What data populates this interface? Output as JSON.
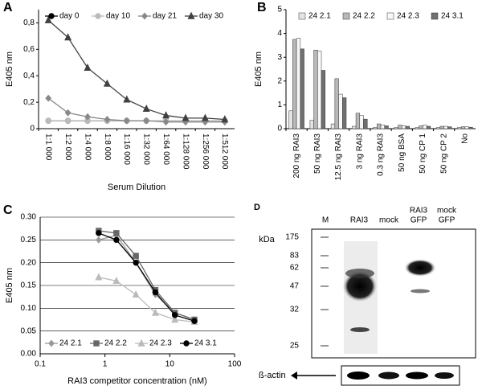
{
  "chart_data": [
    {
      "type": "line",
      "panel": "A",
      "ylabel": "E405 nm",
      "xlabel": "Serum Dilution",
      "categories": [
        "1:1 000",
        "1:2 000",
        "1:4 000",
        "1:8 000",
        "1:16 000",
        "1:32 000",
        "1:64 000",
        "1:128 000",
        "1:256 000",
        "1:512 000"
      ],
      "series": [
        {
          "name": "day 0",
          "color": "#000000",
          "marker": "circle",
          "values": [
            0.06,
            0.06,
            0.06,
            0.06,
            0.06,
            0.06,
            0.06,
            0.06,
            0.06,
            0.06
          ]
        },
        {
          "name": "day 10",
          "color": "#bbbbbb",
          "marker": "circle",
          "values": [
            0.06,
            0.06,
            0.06,
            0.06,
            0.06,
            0.06,
            0.06,
            0.06,
            0.06,
            0.06
          ]
        },
        {
          "name": "day 21",
          "color": "#888888",
          "marker": "diamond",
          "values": [
            0.23,
            0.12,
            0.09,
            0.07,
            0.06,
            0.06,
            0.05,
            0.05,
            0.05,
            0.05
          ]
        },
        {
          "name": "day 30",
          "color": "#404040",
          "marker": "triangle",
          "values": [
            0.82,
            0.69,
            0.46,
            0.34,
            0.22,
            0.15,
            0.1,
            0.08,
            0.08,
            0.07
          ]
        }
      ],
      "ylim": [
        0,
        0.9
      ],
      "yticks": [
        0,
        {
          "value": 0.2,
          "label": "0,2"
        },
        {
          "value": 0.4,
          "label": "0,4"
        },
        {
          "value": 0.6,
          "label": "0,6"
        },
        {
          "value": 0.8,
          "label": "0,8"
        }
      ],
      "grid": false,
      "legend": "top"
    },
    {
      "type": "bar",
      "panel": "B",
      "ylabel": "E405 nm",
      "categories": [
        "200 ng RAI3",
        "50 ng RAI3",
        "12.5 ng RAI3",
        "3 ng RAI3",
        "0.3 ng RAI3",
        "50 ng BSA",
        "50 ng CP 1",
        "50 ng CP 2",
        "No"
      ],
      "series": [
        {
          "name": "24 2.1",
          "color": "#e4e4e4",
          "values": [
            0.75,
            0.35,
            0.2,
            0.1,
            0.05,
            0.05,
            0.05,
            0.05,
            0.05
          ]
        },
        {
          "name": "24 2.2",
          "color": "#b8b8b8",
          "values": [
            3.75,
            3.3,
            2.1,
            0.65,
            0.2,
            0.15,
            0.12,
            0.1,
            0.08
          ]
        },
        {
          "name": "24 2.3",
          "color": "#f8f8f8",
          "values": [
            3.8,
            3.25,
            1.45,
            0.55,
            0.15,
            0.12,
            0.15,
            0.1,
            0.08
          ]
        },
        {
          "name": "24 3.1",
          "color": "#707070",
          "values": [
            3.35,
            2.45,
            1.3,
            0.4,
            0.12,
            0.1,
            0.1,
            0.08,
            0.06
          ]
        }
      ],
      "ylim": [
        0,
        5
      ],
      "yticks": [
        0,
        1,
        2,
        3,
        4,
        5
      ],
      "grid": false,
      "legend": "top"
    },
    {
      "type": "line",
      "panel": "C",
      "ylabel": "E405 nm",
      "xlabel": "RAI3 competitor concentration (nM)",
      "x": [
        0.8,
        1.5,
        3,
        6,
        12,
        24
      ],
      "xscale": "log",
      "series": [
        {
          "name": "24 2.1",
          "color": "#999999",
          "marker": "diamond",
          "values": [
            0.25,
            0.26,
            0.2,
            0.13,
            0.09,
            0.075
          ]
        },
        {
          "name": "24 2.2",
          "color": "#666666",
          "marker": "square",
          "values": [
            0.27,
            0.265,
            0.215,
            0.14,
            0.09,
            0.075
          ]
        },
        {
          "name": "24 2.3",
          "color": "#bbbbbb",
          "marker": "triangle",
          "values": [
            0.168,
            0.16,
            0.13,
            0.09,
            0.075,
            0.07
          ]
        },
        {
          "name": "24 3.1",
          "color": "#000000",
          "marker": "circle",
          "values": [
            0.265,
            0.25,
            0.2,
            0.135,
            0.085,
            0.072
          ]
        }
      ],
      "xlim": [
        0.1,
        100
      ],
      "xticks": [
        0.1,
        1,
        10,
        100
      ],
      "ylim": [
        0,
        0.3
      ],
      "yticks": [
        {
          "value": 0,
          "label": "0.00"
        },
        {
          "value": 0.05,
          "label": "0.05"
        },
        {
          "value": 0.1,
          "label": "0.10"
        },
        {
          "value": 0.15,
          "label": "0.15"
        },
        {
          "value": 0.2,
          "label": "0.20"
        },
        {
          "value": 0.25,
          "label": "0.25"
        },
        {
          "value": 0.3,
          "label": "0.30"
        }
      ],
      "grid": true,
      "legend": "bottom"
    }
  ],
  "blot": {
    "panel": "D",
    "unit": "kDa",
    "lanes": [
      [
        "M"
      ],
      [
        "RAI3"
      ],
      [
        "mock"
      ],
      [
        "RAI3",
        "GFP"
      ],
      [
        "mock",
        "GFP"
      ]
    ],
    "markers": [
      175,
      83,
      62,
      47,
      32,
      25
    ],
    "loading": "ß-actin"
  }
}
